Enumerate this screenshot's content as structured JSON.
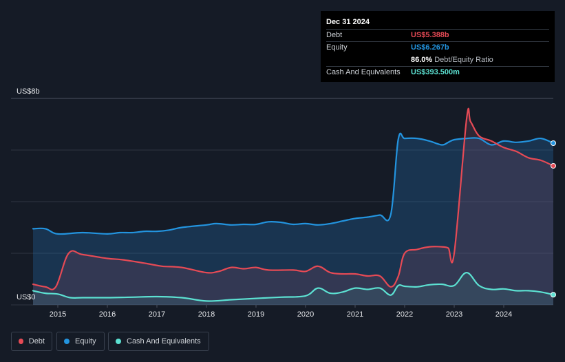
{
  "tooltip": {
    "date": "Dec 31 2024",
    "debt_label": "Debt",
    "debt_value": "US$5.388b",
    "equity_label": "Equity",
    "equity_value": "US$6.267b",
    "ratio_value": "86.0%",
    "ratio_label": "Debt/Equity Ratio",
    "cash_label": "Cash And Equivalents",
    "cash_value": "US$393.500m"
  },
  "legend": {
    "debt": "Debt",
    "equity": "Equity",
    "cash": "Cash And Equivalents"
  },
  "colors": {
    "debt": "#e64a55",
    "equity": "#2394df",
    "cash": "#5ce1d2",
    "background": "#151b26"
  },
  "chart_data": {
    "type": "area",
    "y_top_label": "US$8b",
    "y_bottom_label": "US$0",
    "ylim": [
      0,
      8
    ],
    "xlim": [
      2014.5,
      2025.0
    ],
    "x_ticks": [
      2015,
      2016,
      2017,
      2018,
      2019,
      2020,
      2021,
      2022,
      2023,
      2024
    ],
    "x_tick_labels": [
      "2015",
      "2016",
      "2017",
      "2018",
      "2019",
      "2020",
      "2021",
      "2022",
      "2023",
      "2024"
    ],
    "grid": true,
    "legend_position": "bottom-left",
    "series": [
      {
        "name": "Debt",
        "x": [
          2014.5,
          2014.75,
          2014.96,
          2015.22,
          2015.5,
          2016.0,
          2016.3,
          2016.8,
          2017.1,
          2017.5,
          2018.0,
          2018.25,
          2018.5,
          2018.75,
          2019.0,
          2019.25,
          2019.75,
          2020.0,
          2020.25,
          2020.5,
          2020.75,
          2021.0,
          2021.25,
          2021.5,
          2021.72,
          2021.87,
          2022.0,
          2022.25,
          2022.5,
          2022.75,
          2022.88,
          2023.0,
          2023.25,
          2023.33,
          2023.5,
          2023.75,
          2024.0,
          2024.25,
          2024.5,
          2024.75,
          2025.0
        ],
        "y": [
          0.8,
          0.7,
          0.7,
          2.0,
          1.95,
          1.8,
          1.75,
          1.6,
          1.5,
          1.45,
          1.25,
          1.3,
          1.45,
          1.4,
          1.45,
          1.35,
          1.35,
          1.3,
          1.5,
          1.25,
          1.2,
          1.2,
          1.12,
          1.12,
          0.7,
          1.1,
          2.0,
          2.15,
          2.25,
          2.25,
          2.2,
          2.0,
          7.2,
          7.1,
          6.55,
          6.35,
          6.1,
          5.95,
          5.7,
          5.6,
          5.388
        ]
      },
      {
        "name": "Equity",
        "x": [
          2014.5,
          2014.75,
          2015.0,
          2015.5,
          2016.0,
          2016.25,
          2016.5,
          2016.75,
          2017.0,
          2017.25,
          2017.5,
          2018.0,
          2018.2,
          2018.5,
          2018.75,
          2019.0,
          2019.25,
          2019.5,
          2019.75,
          2020.0,
          2020.25,
          2020.5,
          2020.75,
          2021.0,
          2021.25,
          2021.5,
          2021.72,
          2021.87,
          2022.0,
          2022.25,
          2022.5,
          2022.75,
          2022.88,
          2023.0,
          2023.25,
          2023.5,
          2023.75,
          2024.0,
          2024.25,
          2024.5,
          2024.75,
          2025.0
        ],
        "y": [
          2.95,
          2.95,
          2.75,
          2.8,
          2.75,
          2.8,
          2.8,
          2.85,
          2.85,
          2.9,
          3.0,
          3.1,
          3.15,
          3.1,
          3.12,
          3.12,
          3.22,
          3.2,
          3.12,
          3.15,
          3.1,
          3.15,
          3.25,
          3.35,
          3.4,
          3.48,
          3.5,
          6.4,
          6.45,
          6.45,
          6.35,
          6.2,
          6.3,
          6.4,
          6.45,
          6.45,
          6.2,
          6.35,
          6.3,
          6.35,
          6.45,
          6.267
        ]
      },
      {
        "name": "Cash And Equivalents",
        "x": [
          2014.5,
          2014.75,
          2015.0,
          2015.25,
          2015.5,
          2016.0,
          2016.5,
          2017.0,
          2017.5,
          2018.0,
          2018.5,
          2019.0,
          2019.5,
          2020.0,
          2020.25,
          2020.5,
          2020.75,
          2021.0,
          2021.25,
          2021.5,
          2021.72,
          2021.87,
          2022.0,
          2022.25,
          2022.5,
          2022.75,
          2023.0,
          2023.25,
          2023.5,
          2023.75,
          2024.0,
          2024.25,
          2024.5,
          2024.75,
          2025.0
        ],
        "y": [
          0.55,
          0.45,
          0.42,
          0.28,
          0.28,
          0.28,
          0.3,
          0.32,
          0.28,
          0.15,
          0.2,
          0.25,
          0.3,
          0.35,
          0.65,
          0.45,
          0.5,
          0.65,
          0.6,
          0.65,
          0.38,
          0.75,
          0.72,
          0.7,
          0.78,
          0.8,
          0.75,
          1.25,
          0.75,
          0.6,
          0.62,
          0.55,
          0.55,
          0.5,
          0.3935
        ]
      }
    ]
  }
}
